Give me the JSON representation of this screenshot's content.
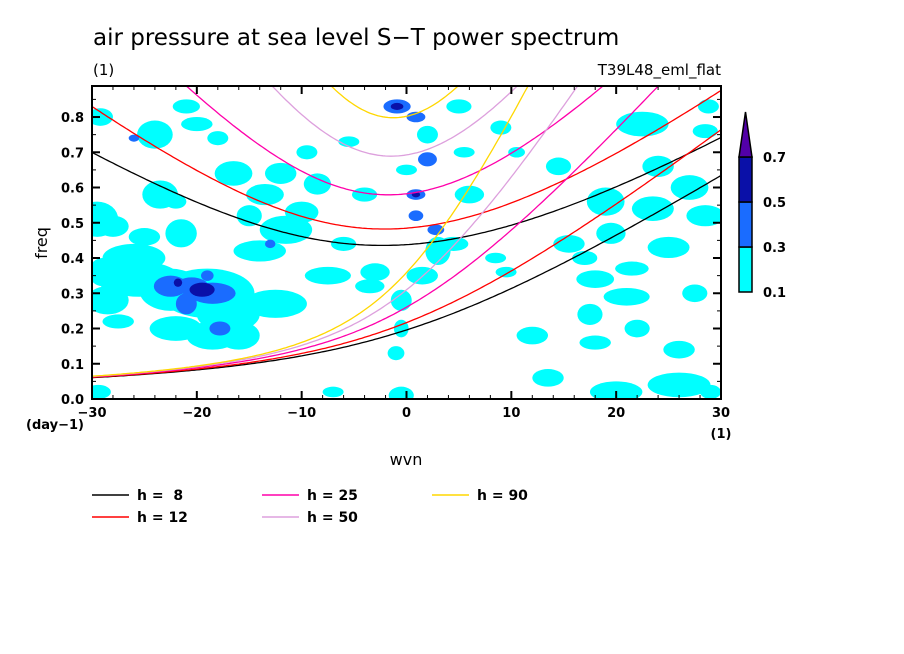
{
  "chart_data": {
    "type": "heatmap",
    "title": "air pressure at sea level S−T power spectrum",
    "units_label": "(1)",
    "experiment_label": "T39L48_eml_flat",
    "xlabel": "wvn",
    "ylabel": "freq",
    "x_units": "(1)",
    "y_units": "(day−1)",
    "xlim": [
      -30,
      30
    ],
    "ylim": [
      0,
      0.888
    ],
    "x_ticks": [
      -30,
      -20,
      -10,
      0,
      10,
      20,
      30
    ],
    "x_tick_labels": [
      "−30",
      "−20",
      "−10",
      "0",
      "10",
      "20",
      "30"
    ],
    "y_ticks": [
      0.0,
      0.1,
      0.2,
      0.3,
      0.4,
      0.5,
      0.6,
      0.7,
      0.8
    ],
    "y_tick_labels": [
      "0.0",
      "0.1",
      "0.2",
      "0.3",
      "0.4",
      "0.5",
      "0.6",
      "0.7",
      "0.8"
    ],
    "colorbar": {
      "levels": [
        0.1,
        0.3,
        0.5,
        0.7
      ],
      "level_labels": [
        "0.1",
        "0.3",
        "0.5",
        "0.7"
      ],
      "colors": [
        "#00ffff",
        "#1a6cff",
        "#0a10a8",
        "#5200a8"
      ],
      "extend": "max"
    },
    "contour_blobs": [
      [
        -29.2,
        0.8,
        1.2,
        0.025,
        0
      ],
      [
        -29.5,
        0.51,
        2.0,
        0.05,
        0
      ],
      [
        -28.0,
        0.49,
        1.5,
        0.03,
        0
      ],
      [
        -29.0,
        0.36,
        1.3,
        0.04,
        0
      ],
      [
        -28.5,
        0.28,
        2.0,
        0.04,
        0
      ],
      [
        -29.4,
        0.02,
        1.2,
        0.02,
        0
      ],
      [
        -26.0,
        0.4,
        3.0,
        0.04,
        0
      ],
      [
        -27.5,
        0.22,
        1.5,
        0.02,
        0
      ],
      [
        -25.0,
        0.46,
        1.5,
        0.025,
        0
      ],
      [
        -24.0,
        0.75,
        1.7,
        0.04,
        0
      ],
      [
        -23.5,
        0.58,
        1.7,
        0.04,
        0
      ],
      [
        -22.0,
        0.56,
        1.0,
        0.02,
        0
      ],
      [
        -21.5,
        0.47,
        1.5,
        0.04,
        0
      ],
      [
        -22.0,
        0.2,
        2.5,
        0.035,
        0
      ],
      [
        -20.0,
        0.27,
        2.0,
        0.03,
        0
      ],
      [
        -21.0,
        0.83,
        1.3,
        0.02,
        0
      ],
      [
        -20.0,
        0.78,
        1.5,
        0.02,
        0
      ],
      [
        -18.0,
        0.74,
        1.0,
        0.02,
        0
      ],
      [
        -18.5,
        0.18,
        2.5,
        0.04,
        0
      ],
      [
        -16.5,
        0.64,
        1.8,
        0.035,
        0
      ],
      [
        -15.0,
        0.52,
        1.2,
        0.03,
        0
      ],
      [
        -13.5,
        0.58,
        1.8,
        0.03,
        0
      ],
      [
        -14.0,
        0.42,
        2.5,
        0.03,
        0
      ],
      [
        -11.5,
        0.48,
        2.5,
        0.04,
        0
      ],
      [
        -12.0,
        0.64,
        1.5,
        0.03,
        0
      ],
      [
        -12.5,
        0.27,
        3.0,
        0.04,
        0
      ],
      [
        -10.0,
        0.53,
        1.6,
        0.03,
        0
      ],
      [
        -9.5,
        0.7,
        1.0,
        0.02,
        0
      ],
      [
        -8.5,
        0.61,
        1.3,
        0.03,
        0
      ],
      [
        -7.5,
        0.35,
        2.2,
        0.025,
        0
      ],
      [
        -6.0,
        0.44,
        1.2,
        0.02,
        0
      ],
      [
        -7.0,
        0.02,
        1.0,
        0.015,
        0
      ],
      [
        -5.5,
        0.73,
        1.0,
        0.015,
        0
      ],
      [
        -4.0,
        0.58,
        1.2,
        0.02,
        0
      ],
      [
        -3.0,
        0.36,
        1.4,
        0.025,
        0
      ],
      [
        -3.5,
        0.32,
        1.4,
        0.02,
        0
      ],
      [
        -0.5,
        0.28,
        1.0,
        0.03,
        0
      ],
      [
        -0.5,
        0.2,
        0.7,
        0.025,
        0
      ],
      [
        -0.5,
        0.01,
        1.2,
        0.025,
        0
      ],
      [
        -1.0,
        0.13,
        0.8,
        0.02,
        0
      ],
      [
        1.5,
        0.35,
        1.5,
        0.025,
        0
      ],
      [
        3.0,
        0.42,
        1.2,
        0.04,
        0
      ],
      [
        4.5,
        0.44,
        1.4,
        0.02,
        0
      ],
      [
        0.0,
        0.65,
        1.0,
        0.015,
        0
      ],
      [
        2.0,
        0.75,
        1.0,
        0.025,
        0
      ],
      [
        5.0,
        0.83,
        1.2,
        0.02,
        0
      ],
      [
        5.5,
        0.7,
        1.0,
        0.015,
        0
      ],
      [
        6.0,
        0.58,
        1.4,
        0.025,
        0
      ],
      [
        8.5,
        0.4,
        1.0,
        0.015,
        0
      ],
      [
        9.5,
        0.36,
        1.0,
        0.015,
        0
      ],
      [
        9.0,
        0.77,
        1.0,
        0.02,
        0
      ],
      [
        10.5,
        0.7,
        0.8,
        0.015,
        0
      ],
      [
        12.0,
        0.18,
        1.5,
        0.025,
        0
      ],
      [
        13.5,
        0.06,
        1.5,
        0.025,
        0
      ],
      [
        14.5,
        0.66,
        1.2,
        0.025,
        0
      ],
      [
        15.5,
        0.44,
        1.5,
        0.025,
        0
      ],
      [
        17.0,
        0.4,
        1.2,
        0.02,
        0
      ],
      [
        18.0,
        0.34,
        1.8,
        0.025,
        0
      ],
      [
        17.5,
        0.24,
        1.2,
        0.03,
        0
      ],
      [
        18.0,
        0.16,
        1.5,
        0.02,
        0
      ],
      [
        19.0,
        0.56,
        1.8,
        0.04,
        0
      ],
      [
        19.5,
        0.47,
        1.4,
        0.03,
        0
      ],
      [
        20.0,
        0.02,
        2.5,
        0.03,
        0
      ],
      [
        21.0,
        0.29,
        2.2,
        0.025,
        0
      ],
      [
        21.5,
        0.37,
        1.6,
        0.02,
        0
      ],
      [
        22.5,
        0.78,
        2.5,
        0.035,
        0
      ],
      [
        22.0,
        0.2,
        1.2,
        0.025,
        0
      ],
      [
        23.5,
        0.54,
        2.0,
        0.035,
        0
      ],
      [
        24.0,
        0.66,
        1.5,
        0.03,
        0
      ],
      [
        25.0,
        0.43,
        2.0,
        0.03,
        0
      ],
      [
        26.0,
        0.14,
        1.5,
        0.025,
        0
      ],
      [
        26.0,
        0.04,
        3.0,
        0.035,
        0
      ],
      [
        27.0,
        0.6,
        1.8,
        0.035,
        0
      ],
      [
        27.5,
        0.3,
        1.2,
        0.025,
        0
      ],
      [
        28.5,
        0.76,
        1.2,
        0.02,
        0
      ],
      [
        28.5,
        0.52,
        1.8,
        0.03,
        0
      ],
      [
        29.0,
        0.02,
        1.0,
        0.02,
        0
      ],
      [
        28.8,
        0.83,
        1.0,
        0.02,
        0
      ],
      [
        -25.5,
        0.34,
        4.0,
        0.05,
        0
      ],
      [
        -22.5,
        0.31,
        3.0,
        0.06,
        0
      ],
      [
        -19.0,
        0.3,
        4.5,
        0.07,
        0
      ],
      [
        -17.0,
        0.24,
        3.0,
        0.05,
        0
      ],
      [
        -16.0,
        0.18,
        2.0,
        0.04,
        0
      ],
      [
        -22.5,
        0.32,
        1.6,
        0.03,
        1
      ],
      [
        -20.5,
        0.32,
        1.6,
        0.025,
        1
      ],
      [
        -21.0,
        0.27,
        1.0,
        0.03,
        1
      ],
      [
        -18.5,
        0.3,
        2.2,
        0.03,
        1
      ],
      [
        -17.8,
        0.2,
        1.0,
        0.02,
        1
      ],
      [
        -19.0,
        0.35,
        0.6,
        0.015,
        1
      ],
      [
        -0.9,
        0.83,
        1.3,
        0.02,
        1
      ],
      [
        0.9,
        0.8,
        0.9,
        0.015,
        1
      ],
      [
        2.0,
        0.68,
        0.9,
        0.02,
        1
      ],
      [
        0.9,
        0.58,
        0.9,
        0.015,
        1
      ],
      [
        0.9,
        0.52,
        0.7,
        0.015,
        1
      ],
      [
        2.8,
        0.48,
        0.8,
        0.015,
        1
      ],
      [
        -26.0,
        0.74,
        0.5,
        0.01,
        1
      ],
      [
        -13.0,
        0.44,
        0.5,
        0.012,
        1
      ],
      [
        -19.5,
        0.31,
        1.2,
        0.02,
        2
      ],
      [
        -21.8,
        0.33,
        0.4,
        0.012,
        2
      ],
      [
        -0.9,
        0.83,
        0.6,
        0.01,
        2
      ],
      [
        0.9,
        0.58,
        0.4,
        0.008,
        2
      ]
    ],
    "series": [
      {
        "name": "h =  8",
        "h": 8,
        "color": "#000000",
        "branches": [
          "n0",
          "n2"
        ]
      },
      {
        "name": "h = 12",
        "h": 12,
        "color": "#ff0000",
        "branches": [
          "n0",
          "n2"
        ]
      },
      {
        "name": "h = 25",
        "h": 25,
        "color": "#ff00aa",
        "branches": [
          "n0",
          "n2"
        ]
      },
      {
        "name": "h = 50",
        "h": 50,
        "color": "#dda0dd",
        "branches": [
          "n0",
          "n2"
        ]
      },
      {
        "name": "h = 90",
        "h": 90,
        "color": "#ffd700",
        "branches": [
          "n0",
          "n2"
        ]
      }
    ],
    "legend": [
      {
        "label": "h =  8",
        "color": "#000000"
      },
      {
        "label": "h = 12",
        "color": "#ff0000"
      },
      {
        "label": "h = 25",
        "color": "#ff00aa"
      },
      {
        "label": "h = 50",
        "color": "#dda0dd"
      },
      {
        "label": "h = 90",
        "color": "#ffd700"
      }
    ],
    "legend_placement": "bottom"
  }
}
